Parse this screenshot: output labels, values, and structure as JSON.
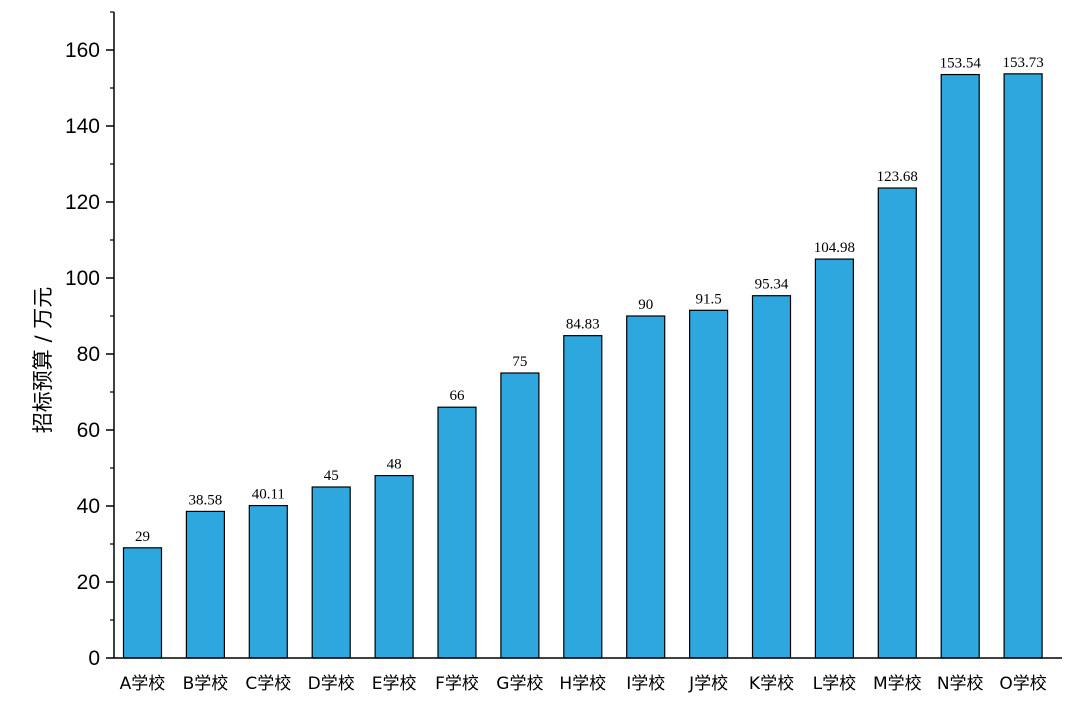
{
  "chart_data": {
    "type": "bar",
    "title": "",
    "xlabel": "",
    "ylabel": "招标预算 / 万元",
    "ylim": [
      0,
      170
    ],
    "yticks": [
      0,
      20,
      40,
      60,
      80,
      100,
      120,
      140,
      160
    ],
    "grid": false,
    "categories": [
      "A学校",
      "B学校",
      "C学校",
      "D学校",
      "E学校",
      "F学校",
      "G学校",
      "H学校",
      "I学校",
      "J学校",
      "K学校",
      "L学校",
      "M学校",
      "N学校",
      "O学校"
    ],
    "values": [
      29,
      38.58,
      40.11,
      45,
      48,
      66,
      75,
      84.83,
      90,
      91.5,
      95.34,
      104.98,
      123.68,
      153.54,
      153.73
    ],
    "data_labels": [
      "29",
      "38.58",
      "40.11",
      "45",
      "48",
      "66",
      "75",
      "84.83",
      "90",
      "91.5",
      "95.34",
      "104.98",
      "123.68",
      "153.54",
      "153.73"
    ],
    "bar_color": "#2ea6de",
    "bar_edge_color": "#000000"
  }
}
